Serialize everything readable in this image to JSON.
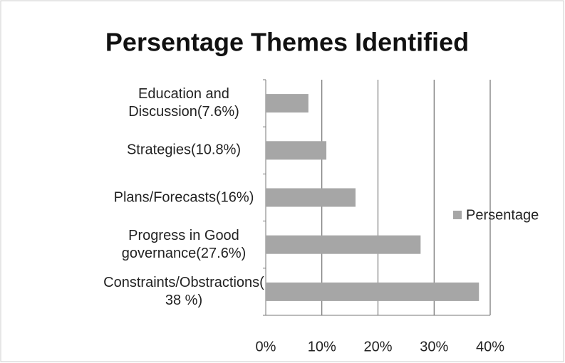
{
  "chart_data": {
    "type": "bar",
    "orientation": "horizontal",
    "title": "Persentage Themes Identified",
    "categories": [
      "Education and Discussion(7.6%)",
      "Strategies(10.8%)",
      "Plans/Forecasts(16%)",
      "Progress in Good governance(27.6%)",
      "Constraints/Obstractions(38 %)"
    ],
    "series": [
      {
        "name": "Persentage",
        "color": "#a6a6a6",
        "values": [
          7.6,
          10.8,
          16,
          27.6,
          38
        ]
      }
    ],
    "xlim": [
      0,
      40
    ],
    "xticks": [
      {
        "value": 0,
        "label": "0%"
      },
      {
        "value": 10,
        "label": "10%"
      },
      {
        "value": 20,
        "label": "20%"
      },
      {
        "value": 30,
        "label": "30%"
      },
      {
        "value": 40,
        "label": "40%"
      }
    ],
    "grid": true,
    "legend": "right"
  }
}
